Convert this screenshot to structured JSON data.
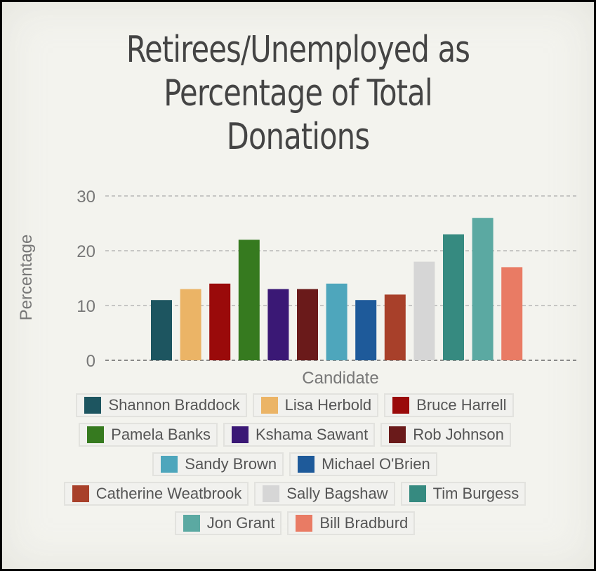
{
  "chart_data": {
    "type": "bar",
    "title_lines": [
      "Retirees/Unemployed as",
      "Percentage of Total",
      "Donations"
    ],
    "xlabel": "Candidate",
    "ylabel": "Percentage",
    "ylim": [
      0,
      30
    ],
    "yticks": [
      0,
      10,
      20,
      30
    ],
    "grid": true,
    "legend_placement": "bottom",
    "categories": [
      "Shannon Braddock",
      "Lisa Herbold",
      "Bruce Harrell",
      "Pamela Banks",
      "Kshama Sawant",
      "Rob Johnson",
      "Sandy Brown",
      "Michael O'Brien",
      "Catherine Weatbrook",
      "Sally Bagshaw",
      "Tim Burgess",
      "Jon Grant",
      "Bill Bradburd"
    ],
    "values": [
      11,
      13,
      14,
      22,
      13,
      13,
      14,
      11,
      12,
      18,
      23,
      26,
      17
    ],
    "colors": [
      "#1d5560",
      "#ebb466",
      "#9a0a0a",
      "#367a1f",
      "#3a1875",
      "#6a1a1a",
      "#4ea6bc",
      "#1e5a9a",
      "#a8402a",
      "#d6d6d6",
      "#368a80",
      "#5ba9a2",
      "#e97b64"
    ],
    "legend_rows": [
      [
        0,
        1,
        2
      ],
      [
        3,
        4,
        5
      ],
      [
        6,
        7
      ],
      [
        8,
        9,
        10
      ],
      [
        11,
        12
      ]
    ]
  }
}
